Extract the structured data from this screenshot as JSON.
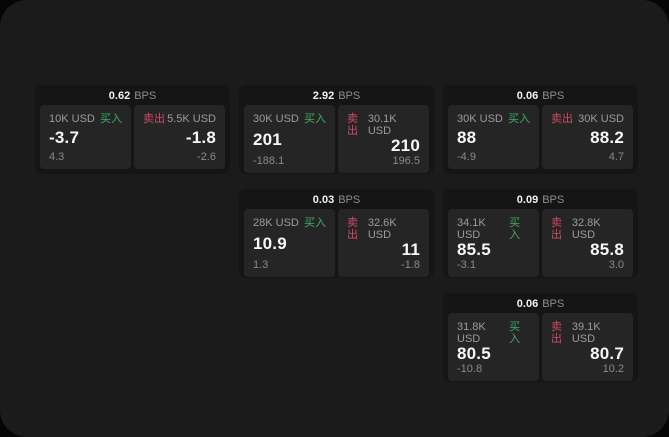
{
  "colors": {
    "page_bg": "#1b1b1c",
    "card_bg": "#151515",
    "panel_bg": "#252526",
    "text_primary": "#f7f7f7",
    "text_secondary": "#9c9c9c",
    "text_muted": "#8a8a8a",
    "buy_green": "#3fae65",
    "sell_red": "#d04a63"
  },
  "labels": {
    "buy": "买入",
    "sell": "卖出",
    "bps_suffix": "BPS"
  },
  "cards": [
    {
      "bps": "0.62",
      "buy": {
        "amount": "10K USD",
        "value": "-3.7",
        "delta": "4.3"
      },
      "sell": {
        "amount": "5.5K USD",
        "value": "-1.8",
        "delta": "-2.6"
      }
    },
    {
      "bps": "2.92",
      "buy": {
        "amount": "30K USD",
        "value": "201",
        "delta": "-188.1"
      },
      "sell": {
        "amount": "30.1K USD",
        "value": "210",
        "delta": "196.5"
      }
    },
    {
      "bps": "0.06",
      "buy": {
        "amount": "30K USD",
        "value": "88",
        "delta": "-4.9"
      },
      "sell": {
        "amount": "30K USD",
        "value": "88.2",
        "delta": "4.7"
      }
    },
    {
      "bps": "0.03",
      "buy": {
        "amount": "28K USD",
        "value": "10.9",
        "delta": "1.3"
      },
      "sell": {
        "amount": "32.6K USD",
        "value": "11",
        "delta": "-1.8"
      }
    },
    {
      "bps": "0.09",
      "buy": {
        "amount": "34.1K USD",
        "value": "85.5",
        "delta": "-3.1"
      },
      "sell": {
        "amount": "32.8K USD",
        "value": "85.8",
        "delta": "3.0"
      }
    },
    {
      "bps": "0.06",
      "buy": {
        "amount": "31.8K USD",
        "value": "80.5",
        "delta": "-10.8"
      },
      "sell": {
        "amount": "39.1K USD",
        "value": "80.7",
        "delta": "10.2"
      }
    }
  ]
}
